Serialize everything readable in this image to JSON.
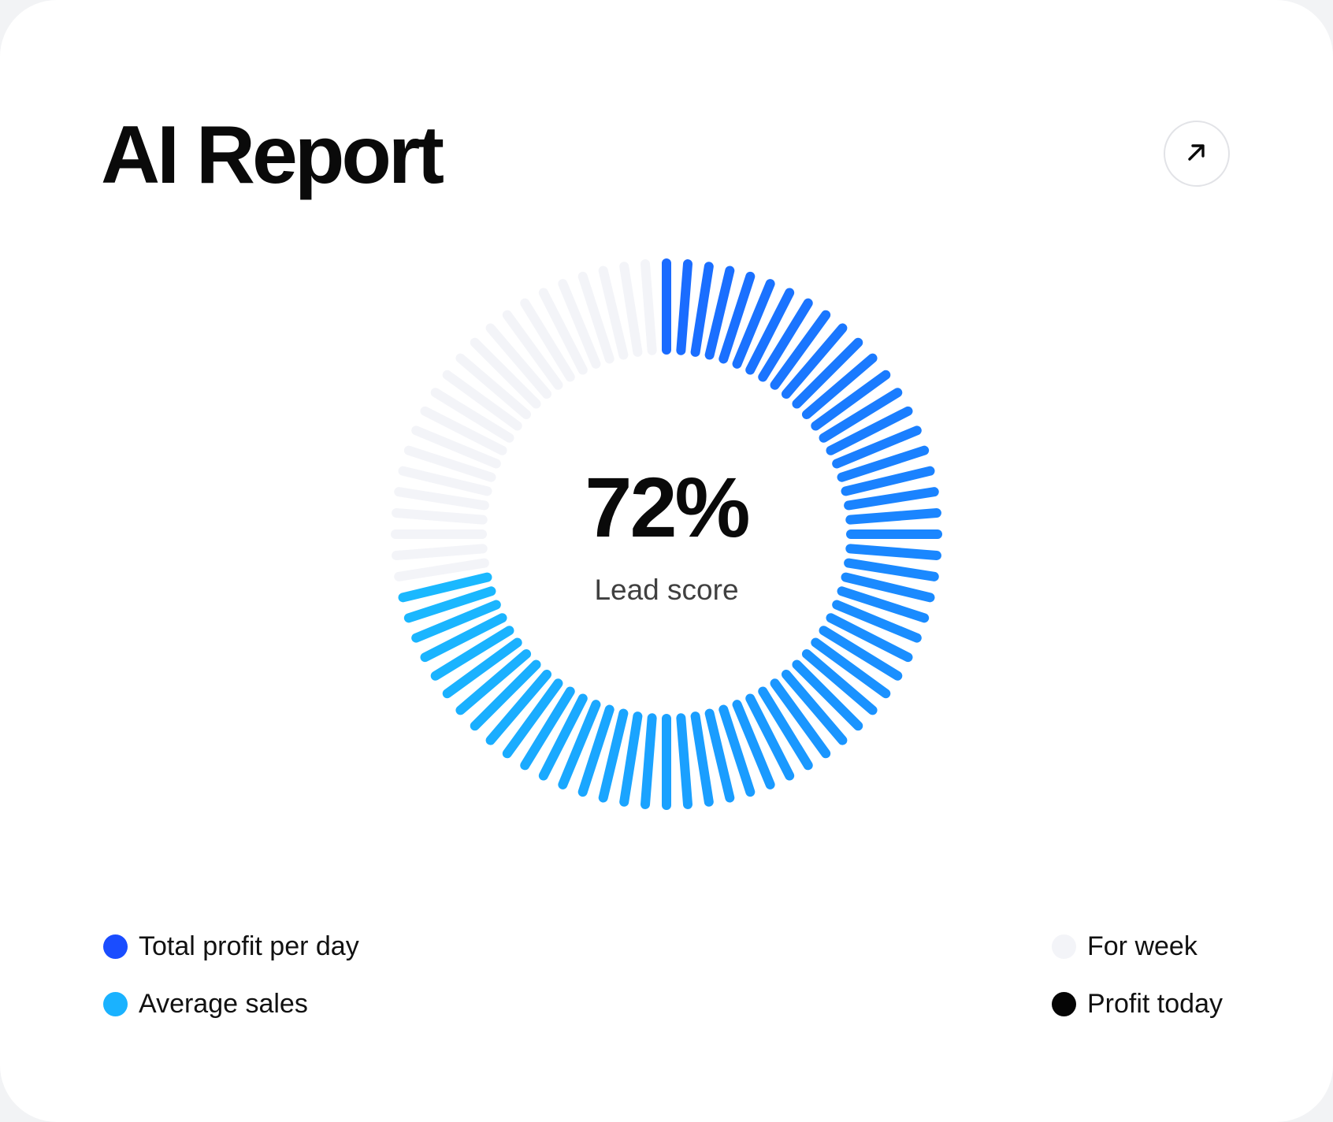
{
  "header": {
    "title": "AI Report",
    "open_icon": "arrow-up-right-icon"
  },
  "gauge": {
    "value_label": "72%",
    "caption": "Lead score",
    "percent": 72,
    "colors": {
      "start": "#1a6bff",
      "end": "#1ab8ff",
      "track": "#f3f4f8"
    }
  },
  "legend": {
    "left": [
      {
        "label": "Total profit per day",
        "color": "#1a4dff"
      },
      {
        "label": "Average sales",
        "color": "#1ab2ff"
      }
    ],
    "right": [
      {
        "label": "For week",
        "color": "#f3f4f8"
      },
      {
        "label": "Profit today",
        "color": "#050505"
      }
    ]
  }
}
